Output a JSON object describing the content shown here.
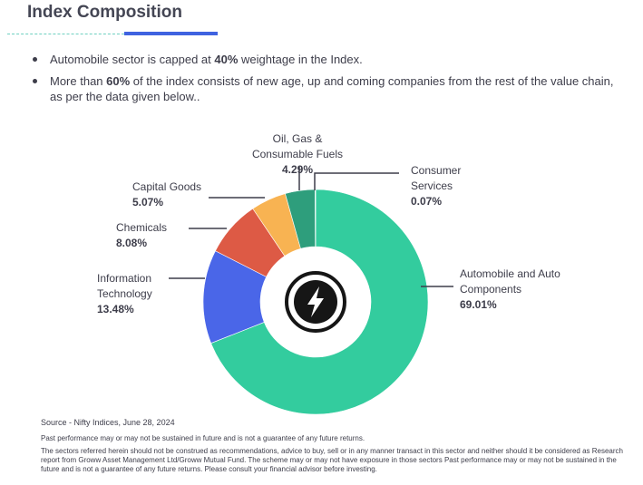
{
  "page": {
    "title": "Index Composition",
    "bullets": [
      {
        "pre": "Automobile sector is capped at ",
        "bold": "40%",
        "post": " weightage in the Index."
      },
      {
        "pre": "More than ",
        "bold": "60%",
        "post": " of the index consists of new age, up and coming companies from the rest of the value chain, as per the data given below.."
      }
    ],
    "source": "Source - Nifty Indices, June 28, 2024",
    "performance_note": "Past performance may or may not be sustained in future and is not a guarantee of any future returns.",
    "disclaimer": "The sectors referred herein should not be construed as recommendations, advice to buy, sell or in any manner transact in this sector and neither should it be considered as Research report from Groww Asset Management Ltd/Groww Mutual Fund. The scheme may or may not have exposure in those sectors Past performance may or may not be sustained in the future and is not a guarantee of any future returns. Please consult your financial advisor before investing."
  },
  "chart_data": {
    "type": "pie",
    "style": "donut",
    "title": "",
    "center_icon": "lightning-bolt-icon",
    "slices": [
      {
        "label": [
          "Automobile and Auto",
          "Components"
        ],
        "value": 69.01,
        "display": "69.01%",
        "color": "#33cc9e"
      },
      {
        "label": [
          "Information",
          "Technology"
        ],
        "value": 13.48,
        "display": "13.48%",
        "color": "#4a66e8"
      },
      {
        "label": [
          "Chemicals"
        ],
        "value": 8.08,
        "display": "8.08%",
        "color": "#dd5a45"
      },
      {
        "label": [
          "Capital Goods"
        ],
        "value": 5.07,
        "display": "5.07%",
        "color": "#f8b352"
      },
      {
        "label": [
          "Oil, Gas &",
          "Consumable Fuels"
        ],
        "value": 4.29,
        "display": "4.29%",
        "color": "#2e9e7c"
      },
      {
        "label": [
          "Consumer",
          "Services"
        ],
        "value": 0.07,
        "display": "0.07%",
        "color": "#1f6b5a"
      }
    ]
  }
}
